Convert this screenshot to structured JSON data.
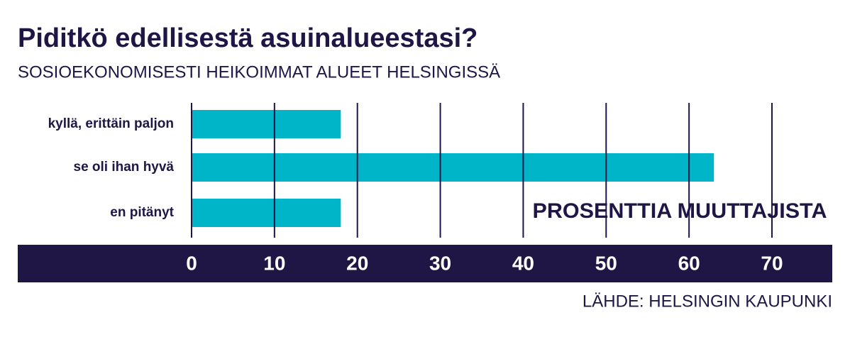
{
  "chart_data": {
    "type": "barh",
    "title": "Piditkö edellisestä asuinalueestasi?",
    "subtitle": "SOSIOEKONOMISESTI HEIKOIMMAT ALUEET HELSINGISSÄ",
    "annotation": "PROSENTTIA MUUTTAJISTA",
    "source": "LÄHDE: HELSINGIN KAUPUNKI",
    "categories": [
      "kyllä, erittäin paljon",
      "se oli ihan hyvä",
      "en pitänyt"
    ],
    "values": [
      18,
      63,
      18
    ],
    "color": "#00b5c8",
    "xlim": [
      0,
      70
    ],
    "xticks": [
      0,
      10,
      20,
      30,
      40,
      50,
      60,
      70
    ],
    "grid": true
  }
}
